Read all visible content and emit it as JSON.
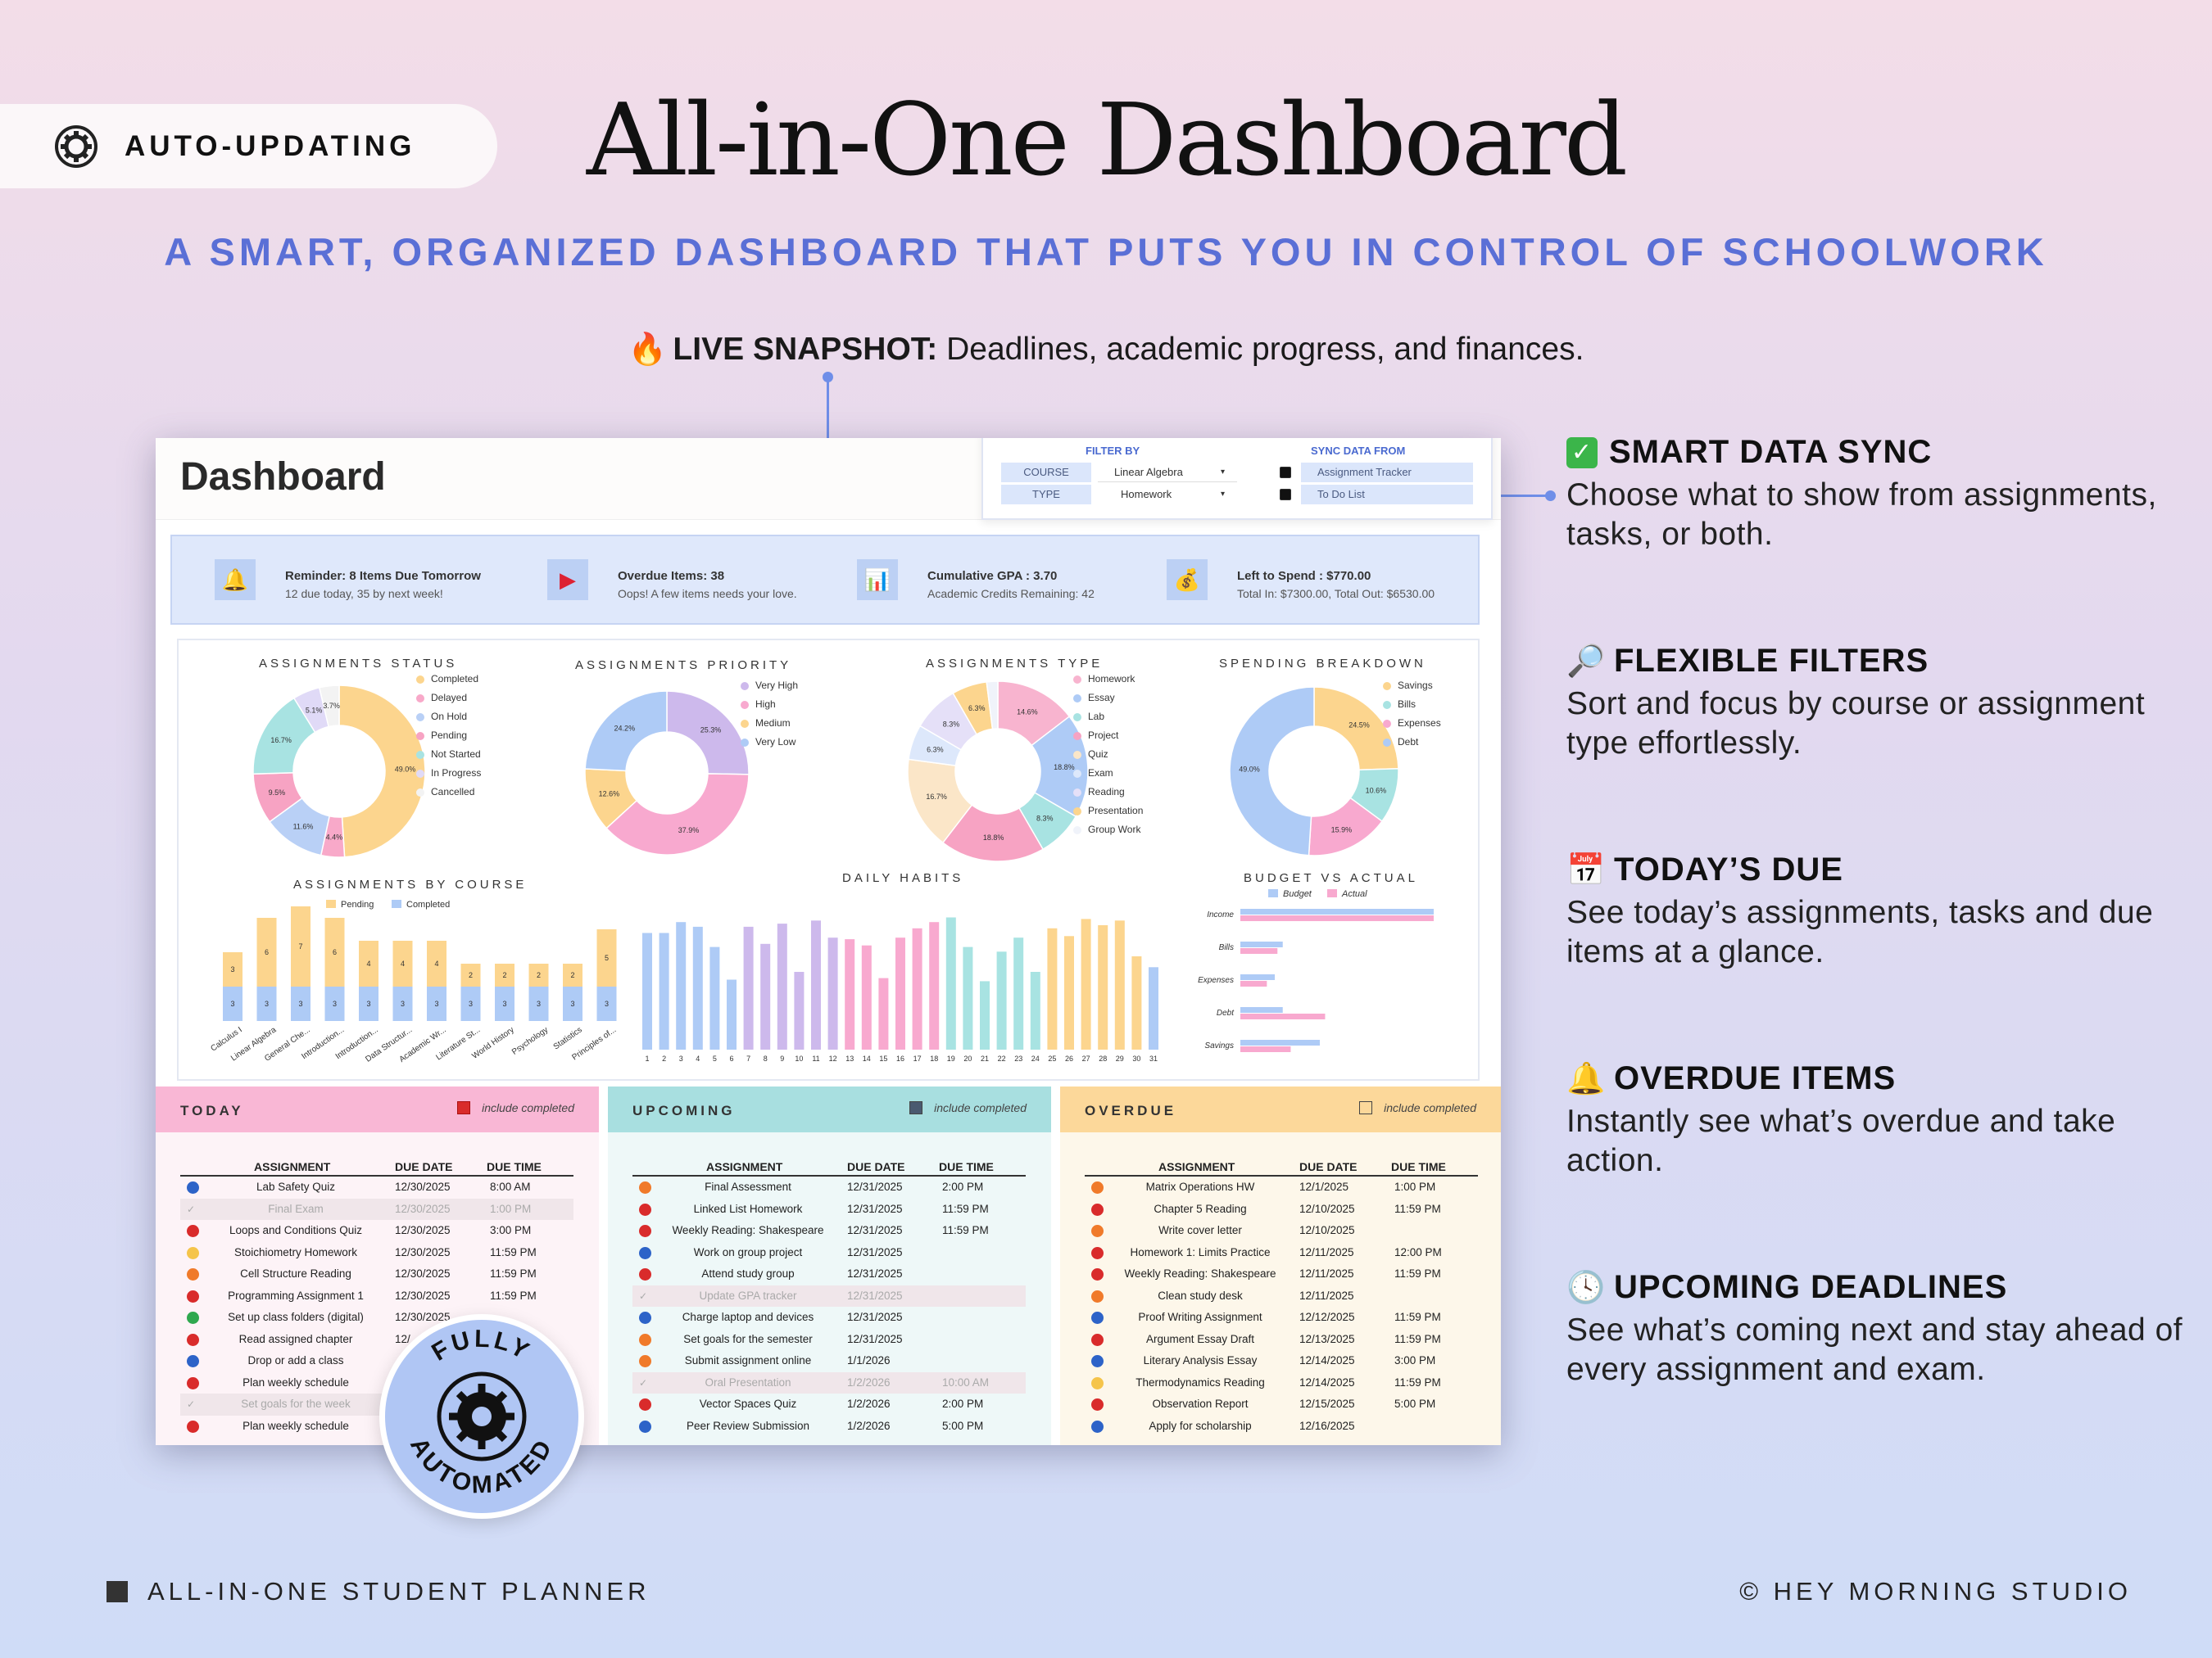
{
  "badge": {
    "label": "AUTO-UPDATING",
    "icon": "gear-icon"
  },
  "title": "All-in-One Dashboard",
  "subtitle": "A SMART, ORGANIZED DASHBOARD THAT PUTS YOU IN CONTROL OF SCHOOLWORK",
  "snapshot": {
    "icon": "fire-icon",
    "label": "LIVE SNAPSHOT:",
    "text": "Deadlines, academic progress, and finances."
  },
  "features": [
    {
      "icon": "check-icon",
      "title": "SMART DATA SYNC",
      "desc": "Choose what to show from assignments, tasks, or both."
    },
    {
      "icon": "magnifier-icon",
      "title": "FLEXIBLE FILTERS",
      "desc": "Sort and focus by course or assignment type effortlessly."
    },
    {
      "icon": "calendar-icon",
      "title": "TODAY’S DUE",
      "desc": "See today’s assignments, tasks and due items at a glance."
    },
    {
      "icon": "bell-icon",
      "title": "OVERDUE ITEMS",
      "desc": "Instantly see what’s overdue and take action."
    },
    {
      "icon": "clock-icon",
      "title": "UPCOMING DEADLINES",
      "desc": "See what’s coming next and stay ahead of every assignment and exam."
    }
  ],
  "footer": {
    "left": "ALL-IN-ONE STUDENT PLANNER",
    "right": "© HEY MORNING STUDIO"
  },
  "auto_badge": {
    "top": "FULLY",
    "bottom": "AUTOMATED"
  },
  "dashboard": {
    "title": "Dashboard",
    "filter": {
      "filter_by": "FILTER BY",
      "sync_from": "SYNC DATA FROM",
      "course_label": "COURSE",
      "course_value": "Linear Algebra",
      "type_label": "TYPE",
      "type_value": "Homework",
      "sync1": "Assignment Tracker",
      "sync2": "To Do List"
    },
    "reminders": [
      {
        "icon": "bell-icon",
        "title": "Reminder: 8 Items Due Tomorrow",
        "sub": "12 due today, 35 by next week!"
      },
      {
        "icon": "flag-icon",
        "title": "Overdue Items: 38",
        "sub": "Oops! A few items needs your love."
      },
      {
        "icon": "bar-chart-icon",
        "title": "Cumulative GPA : 3.70",
        "sub": "Academic Credits Remaining: 42"
      },
      {
        "icon": "money-bag-icon",
        "title": "Left to Spend : $770.00",
        "sub": "Total In: $7300.00, Total Out: $6530.00"
      }
    ],
    "chart_titles": {
      "status": "ASSIGNMENTS STATUS",
      "priority": "ASSIGNMENTS PRIORITY",
      "type": "ASSIGNMENTS TYPE",
      "spending": "SPENDING BREAKDOWN",
      "by_course": "ASSIGNMENTS BY COURSE",
      "habits": "DAILY HABITS",
      "budget": "BUDGET VS ACTUAL"
    },
    "panels": {
      "today": {
        "title": "TODAY",
        "include": "include completed"
      },
      "upcoming": {
        "title": "UPCOMING",
        "include": "include completed"
      },
      "overdue": {
        "title": "OVERDUE",
        "include": "include completed"
      },
      "col_assignment": "ASSIGNMENT",
      "col_date": "DUE DATE",
      "col_time": "DUE TIME"
    }
  },
  "chart_data": [
    {
      "type": "pie",
      "title": "ASSIGNMENTS STATUS",
      "labels": [
        "Completed",
        "Delayed",
        "On Hold",
        "Pending",
        "Not Started",
        "In Progress",
        "Cancelled"
      ],
      "values": [
        49.0,
        4.4,
        11.6,
        9.5,
        16.7,
        5.1,
        3.7
      ],
      "colors": [
        "#fcd58e",
        "#f8a9c9",
        "#b9d0f6",
        "#f7a3c3",
        "#a8e3e2",
        "#e0daf7",
        "#f3f3f3"
      ]
    },
    {
      "type": "pie",
      "title": "ASSIGNMENTS PRIORITY",
      "labels": [
        "Very High",
        "High",
        "Medium",
        "Very Low"
      ],
      "values": [
        25.3,
        37.9,
        12.6,
        24.2
      ],
      "colors": [
        "#cdb9ec",
        "#f8a9cf",
        "#fcd58e",
        "#aecbf6"
      ]
    },
    {
      "type": "pie",
      "title": "ASSIGNMENTS TYPE",
      "labels": [
        "Homework",
        "Essay",
        "Lab",
        "Project",
        "Quiz",
        "Exam",
        "Reading",
        "Presentation",
        "Group Work"
      ],
      "values": [
        14.6,
        18.8,
        8.3,
        18.8,
        16.7,
        6.3,
        8.3,
        6.3,
        2.0
      ],
      "colors": [
        "#f8b4cf",
        "#aecbf6",
        "#a8e3e2",
        "#f7a3c3",
        "#fbe6c8",
        "#dde8fb",
        "#e5e0f8",
        "#fcd58e",
        "#f0f3fa"
      ]
    },
    {
      "type": "pie",
      "title": "SPENDING BREAKDOWN",
      "labels": [
        "Savings",
        "Bills",
        "Expenses",
        "Debt"
      ],
      "values": [
        24.5,
        10.6,
        15.9,
        49.0
      ],
      "colors": [
        "#fcd58e",
        "#a8e3e2",
        "#f8a9cf",
        "#aecbf6"
      ]
    },
    {
      "type": "bar",
      "title": "ASSIGNMENTS BY COURSE",
      "categories": [
        "Calculus I",
        "Linear Algebra",
        "General Che...",
        "Introduction...",
        "Introduction...",
        "Data Structur...",
        "Academic Wr...",
        "Literature St...",
        "World History",
        "Psychology",
        "Statistics",
        "Principles of..."
      ],
      "series": [
        {
          "name": "Pending",
          "values": [
            3,
            6,
            7,
            6,
            4,
            4,
            4,
            2,
            2,
            2,
            2,
            5
          ]
        },
        {
          "name": "Completed",
          "values": [
            3,
            3,
            3,
            3,
            3,
            3,
            3,
            3,
            3,
            3,
            3,
            3
          ]
        }
      ]
    },
    {
      "type": "bar",
      "title": "DAILY HABITS",
      "categories": [
        "1",
        "2",
        "3",
        "4",
        "5",
        "6",
        "7",
        "8",
        "9",
        "10",
        "11",
        "12",
        "13",
        "14",
        "15",
        "16",
        "17",
        "18",
        "19",
        "20",
        "21",
        "22",
        "23",
        "24",
        "25",
        "26",
        "27",
        "28",
        "29",
        "30",
        "31"
      ],
      "values": [
        75,
        75,
        82,
        79,
        66,
        45,
        79,
        68,
        81,
        50,
        83,
        72,
        71,
        67,
        46,
        72,
        78,
        82,
        85,
        66,
        44,
        63,
        72,
        50,
        78,
        73,
        84,
        80,
        83,
        60,
        53
      ]
    },
    {
      "type": "bar",
      "title": "BUDGET VS ACTUAL",
      "categories": [
        "Income",
        "Bills",
        "Expenses",
        "Debt",
        "Savings"
      ],
      "series": [
        {
          "name": "Budget",
          "values": [
            7300,
            1600,
            1300,
            1600,
            3000
          ]
        },
        {
          "name": "Actual",
          "values": [
            7300,
            1400,
            1000,
            3200,
            1900
          ]
        }
      ]
    }
  ],
  "today_rows": [
    {
      "name": "Lab Safety Quiz",
      "date": "12/30/2025",
      "time": "8:00 AM",
      "status": "blue"
    },
    {
      "name": "Final Exam",
      "date": "12/30/2025",
      "time": "1:00 PM",
      "status": "done"
    },
    {
      "name": "Loops and Conditions Quiz",
      "date": "12/30/2025",
      "time": "3:00 PM",
      "status": "red"
    },
    {
      "name": "Stoichiometry Homework",
      "date": "12/30/2025",
      "time": "11:59 PM",
      "status": "yellow"
    },
    {
      "name": "Cell Structure Reading",
      "date": "12/30/2025",
      "time": "11:59 PM",
      "status": "fire"
    },
    {
      "name": "Programming Assignment 1",
      "date": "12/30/2025",
      "time": "11:59 PM",
      "status": "red"
    },
    {
      "name": "Set up class folders (digital)",
      "date": "12/30/2025",
      "time": "",
      "status": "green"
    },
    {
      "name": "Read assigned chapter",
      "date": "12/",
      "time": "",
      "status": "red"
    },
    {
      "name": "Drop or add a class",
      "date": "",
      "time": "",
      "status": "blue"
    },
    {
      "name": "Plan weekly schedule",
      "date": "",
      "time": "",
      "status": "red"
    },
    {
      "name": "Set goals for the week",
      "date": "",
      "time": "",
      "status": "done"
    },
    {
      "name": "Plan weekly schedule",
      "date": "",
      "time": "",
      "status": "red"
    }
  ],
  "upcoming_rows": [
    {
      "name": "Final Assessment",
      "date": "12/31/2025",
      "time": "2:00 PM",
      "status": "fire"
    },
    {
      "name": "Linked List Homework",
      "date": "12/31/2025",
      "time": "11:59 PM",
      "status": "red"
    },
    {
      "name": "Weekly Reading: Shakespeare",
      "date": "12/31/2025",
      "time": "11:59 PM",
      "status": "red"
    },
    {
      "name": "Work on group project",
      "date": "12/31/2025",
      "time": "",
      "status": "blue"
    },
    {
      "name": "Attend study group",
      "date": "12/31/2025",
      "time": "",
      "status": "red"
    },
    {
      "name": "Update GPA tracker",
      "date": "12/31/2025",
      "time": "",
      "status": "done"
    },
    {
      "name": "Charge laptop and devices",
      "date": "12/31/2025",
      "time": "",
      "status": "blue"
    },
    {
      "name": "Set goals for the semester",
      "date": "12/31/2025",
      "time": "",
      "status": "fire"
    },
    {
      "name": "Submit assignment online",
      "date": "1/1/2026",
      "time": "",
      "status": "fire"
    },
    {
      "name": "Oral Presentation",
      "date": "1/2/2026",
      "time": "10:00 AM",
      "status": "done"
    },
    {
      "name": "Vector Spaces Quiz",
      "date": "1/2/2026",
      "time": "2:00 PM",
      "status": "red"
    },
    {
      "name": "Peer Review Submission",
      "date": "1/2/2026",
      "time": "5:00 PM",
      "status": "blue"
    }
  ],
  "overdue_rows": [
    {
      "name": "Matrix Operations HW",
      "date": "12/1/2025",
      "time": "1:00 PM",
      "status": "fire"
    },
    {
      "name": "Chapter 5 Reading",
      "date": "12/10/2025",
      "time": "11:59 PM",
      "status": "red"
    },
    {
      "name": "Write cover letter",
      "date": "12/10/2025",
      "time": "",
      "status": "fire"
    },
    {
      "name": "Homework 1: Limits Practice",
      "date": "12/11/2025",
      "time": "12:00 PM",
      "status": "red"
    },
    {
      "name": "Weekly Reading: Shakespeare",
      "date": "12/11/2025",
      "time": "11:59 PM",
      "status": "red"
    },
    {
      "name": "Clean study desk",
      "date": "12/11/2025",
      "time": "",
      "status": "fire"
    },
    {
      "name": "Proof Writing Assignment",
      "date": "12/12/2025",
      "time": "11:59 PM",
      "status": "blue"
    },
    {
      "name": "Argument Essay Draft",
      "date": "12/13/2025",
      "time": "11:59 PM",
      "status": "red"
    },
    {
      "name": "Literary Analysis Essay",
      "date": "12/14/2025",
      "time": "3:00 PM",
      "status": "blue"
    },
    {
      "name": "Thermodynamics Reading",
      "date": "12/14/2025",
      "time": "11:59 PM",
      "status": "yellow"
    },
    {
      "name": "Observation Report",
      "date": "12/15/2025",
      "time": "5:00 PM",
      "status": "red"
    },
    {
      "name": "Apply for scholarship",
      "date": "12/16/2025",
      "time": "",
      "status": "blue"
    }
  ],
  "colors": {
    "accent": "#5a6fd6",
    "connector": "#6f8ee8",
    "today": "#f9b7d5",
    "upcoming": "#a8dfe0",
    "overdue": "#fcd89a"
  }
}
